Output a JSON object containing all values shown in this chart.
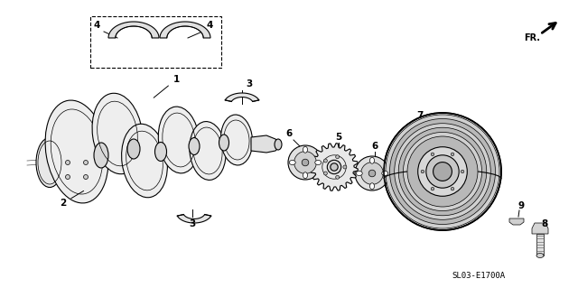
{
  "bg_color": "#ffffff",
  "line_color": "#000000",
  "footnote": "SL03-E1700A",
  "fr_label": "FR.",
  "figsize": [
    6.4,
    3.19
  ],
  "dpi": 100,
  "xlim": [
    0,
    640
  ],
  "ylim": [
    0,
    319
  ]
}
